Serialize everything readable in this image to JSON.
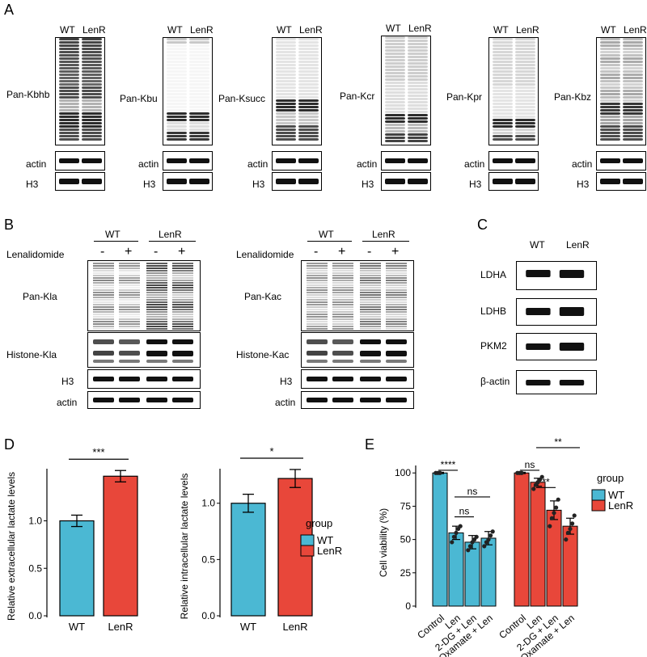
{
  "panel_labels": {
    "a": "A",
    "b": "B",
    "c": "C",
    "d": "D",
    "e": "E"
  },
  "panelA": {
    "lanes": [
      "WT",
      "LenR"
    ],
    "blots": [
      {
        "label": "Pan-Kbhb"
      },
      {
        "label": "Pan-Kbu"
      },
      {
        "label": "Pan-Ksucc"
      },
      {
        "label": "Pan-Kcr"
      },
      {
        "label": "Pan-Kpr"
      },
      {
        "label": "Pan-Kbz"
      }
    ],
    "loading": [
      "actin",
      "H3"
    ]
  },
  "panelB": {
    "groups": [
      "WT",
      "LenR"
    ],
    "treatment_label": "Lenalidomide",
    "signs": [
      "-",
      "+",
      "-",
      "+"
    ],
    "left": {
      "main": "Pan-Kla",
      "histone": "Histone-Kla"
    },
    "right": {
      "main": "Pan-Kac",
      "histone": "Histone-Kac"
    },
    "loading": [
      "H3",
      "actin"
    ]
  },
  "panelC": {
    "lanes": [
      "WT",
      "LenR"
    ],
    "rows": [
      "LDHA",
      "LDHB",
      "PKM2",
      "β-actin"
    ]
  },
  "colors": {
    "wt": "#4bb8d3",
    "lenr": "#e8473a"
  },
  "chart_data": [
    {
      "type": "bar",
      "categories": [
        "WT",
        "LenR"
      ],
      "values": [
        1.0,
        1.47
      ],
      "errors": [
        0.06,
        0.06
      ],
      "ylabel": "Relative extracellular lactate levels",
      "ylim": [
        0,
        1.6
      ],
      "yticks": [
        "0.0",
        "0.5",
        "1.0"
      ],
      "significance": "***"
    },
    {
      "type": "bar",
      "categories": [
        "WT",
        "LenR"
      ],
      "values": [
        1.0,
        1.22
      ],
      "errors": [
        0.08,
        0.08
      ],
      "ylabel": "Relative intracellular lactate levels",
      "ylim": [
        0,
        1.35
      ],
      "yticks": [
        "0.0",
        "0.5",
        "1.0"
      ],
      "significance": "*"
    },
    {
      "type": "bar",
      "categories": [
        "Control",
        "Len",
        "2-DG + Len",
        "Oxamate + Len"
      ],
      "series": [
        {
          "name": "WT",
          "values": [
            100,
            55,
            48,
            51
          ],
          "errors": [
            0.5,
            5,
            5,
            5
          ],
          "points": [
            [
              100,
              100,
              100
            ],
            [
              48,
              52,
              55,
              58,
              60
            ],
            [
              42,
              45,
              48,
              50,
              52
            ],
            [
              45,
              48,
              50,
              53,
              56
            ]
          ]
        },
        {
          "name": "LenR",
          "values": [
            100,
            93,
            72,
            60
          ],
          "errors": [
            0.5,
            3,
            7,
            6
          ],
          "points": [
            [
              100,
              100,
              100
            ],
            [
              88,
              91,
              93,
              95,
              97
            ],
            [
              60,
              66,
              70,
              74,
              80
            ],
            [
              50,
              55,
              58,
              62,
              68
            ]
          ]
        }
      ],
      "ylabel": "Cell viability (%)",
      "ylim": [
        0,
        105
      ],
      "yticks": [
        "0",
        "25",
        "50",
        "75",
        "100"
      ],
      "annotations": {
        "wt": [
          "****",
          "ns",
          "ns"
        ],
        "lenr": [
          "ns",
          "**",
          "**"
        ]
      }
    }
  ],
  "legend": {
    "title": "group",
    "items": [
      "WT",
      "LenR"
    ]
  }
}
